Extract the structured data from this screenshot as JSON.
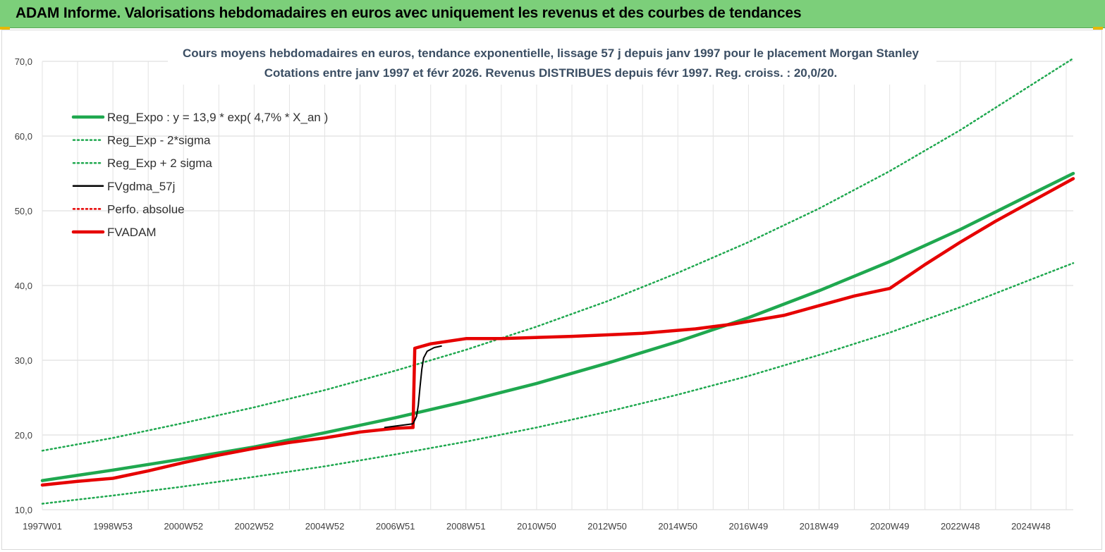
{
  "header": {
    "title": "ADAM Informe. Valorisations hebdomadaires en euros avec uniquement les revenus et des courbes de tendances"
  },
  "chart_data": {
    "type": "line",
    "title": "Cours moyens hebdomadaires en euros, tendance exponentielle, lissage 57 j depuis janv 1997 pour le placement Morgan Stanley",
    "subtitle": "Cotations entre janv 1997 et févr 2026. Revenus DISTRIBUES depuis févr 1997. Reg. croiss. : 20,0/20.",
    "xlabel": "",
    "ylabel": "",
    "ylim": [
      10,
      70
    ],
    "xlim": [
      1997.0,
      2026.2
    ],
    "y_ticks": [
      "10,0",
      "20,0",
      "30,0",
      "40,0",
      "50,0",
      "60,0",
      "70,0"
    ],
    "x_ticks": [
      "1997W01",
      "1998W53",
      "2000W52",
      "2002W52",
      "2004W52",
      "2006W51",
      "2008W51",
      "2010W50",
      "2012W50",
      "2014W50",
      "2016W49",
      "2018W49",
      "2020W49",
      "2022W48",
      "2024W48"
    ],
    "grid": true,
    "legend_position": "top-left",
    "colors": {
      "trend": "#1fa84f",
      "band": "#1fa84f",
      "smooth": "#000000",
      "perf": "#e60000",
      "fvadam": "#e60000"
    },
    "series": [
      {
        "name": "Reg_Expo : y = 13,9 * exp( 4,7% *  X_an )",
        "style": "thick-solid",
        "color": "#1fa84f",
        "x": [
          1997.0,
          1999.0,
          2001.0,
          2003.0,
          2005.0,
          2007.0,
          2009.0,
          2011.0,
          2013.0,
          2015.0,
          2017.0,
          2019.0,
          2021.0,
          2023.0,
          2025.0,
          2026.2
        ],
        "values": [
          13.9,
          15.3,
          16.8,
          18.4,
          20.3,
          22.3,
          24.5,
          26.9,
          29.6,
          32.5,
          35.7,
          39.3,
          43.2,
          47.5,
          52.2,
          55.0
        ]
      },
      {
        "name": "Reg_Exp - 2*sigma",
        "style": "dotted",
        "color": "#1fa84f",
        "x": [
          1997.0,
          1999.0,
          2001.0,
          2003.0,
          2005.0,
          2007.0,
          2009.0,
          2011.0,
          2013.0,
          2015.0,
          2017.0,
          2019.0,
          2021.0,
          2023.0,
          2025.0,
          2026.2
        ],
        "values": [
          10.8,
          11.9,
          13.1,
          14.4,
          15.8,
          17.4,
          19.1,
          21.0,
          23.1,
          25.4,
          27.9,
          30.7,
          33.7,
          37.1,
          40.8,
          43.0
        ]
      },
      {
        "name": "Reg_Exp + 2 sigma",
        "style": "dotted",
        "color": "#1fa84f",
        "x": [
          1997.0,
          1999.0,
          2001.0,
          2003.0,
          2005.0,
          2007.0,
          2009.0,
          2011.0,
          2013.0,
          2015.0,
          2017.0,
          2019.0,
          2021.0,
          2023.0,
          2025.0,
          2026.2
        ],
        "values": [
          17.9,
          19.6,
          21.6,
          23.7,
          26.0,
          28.6,
          31.4,
          34.5,
          37.9,
          41.7,
          45.8,
          50.3,
          55.3,
          60.8,
          66.8,
          70.4
        ]
      },
      {
        "name": "FVgdma_57j",
        "style": "solid",
        "color": "#000000",
        "x": [
          2006.7,
          2007.5,
          2007.6,
          2007.65,
          2007.7,
          2007.75,
          2007.8,
          2007.9,
          2008.1,
          2008.3
        ],
        "values": [
          21.0,
          21.5,
          22.5,
          24.0,
          26.5,
          28.8,
          30.3,
          31.2,
          31.7,
          31.9
        ]
      },
      {
        "name": "Perfo. absolue",
        "style": "dotted",
        "color": "#e60000",
        "x": [],
        "values": []
      },
      {
        "name": "FVADAM",
        "style": "thick-solid",
        "color": "#e60000",
        "x": [
          1997.0,
          1998.0,
          1999.0,
          2000.0,
          2001.0,
          2002.0,
          2003.0,
          2004.0,
          2005.0,
          2006.0,
          2007.0,
          2007.5,
          2007.55,
          2008.0,
          2009.0,
          2010.0,
          2012.0,
          2014.0,
          2015.5,
          2016.5,
          2018.0,
          2019.0,
          2020.0,
          2021.0,
          2021.5,
          2022.0,
          2023.0,
          2024.0,
          2025.0,
          2026.2
        ],
        "values": [
          13.3,
          13.8,
          14.2,
          15.2,
          16.3,
          17.3,
          18.2,
          19.0,
          19.6,
          20.4,
          20.9,
          21.0,
          31.6,
          32.2,
          32.9,
          32.9,
          33.2,
          33.6,
          34.2,
          34.8,
          36.0,
          37.3,
          38.6,
          39.6,
          41.2,
          42.8,
          45.8,
          48.6,
          51.2,
          54.3
        ]
      }
    ]
  }
}
